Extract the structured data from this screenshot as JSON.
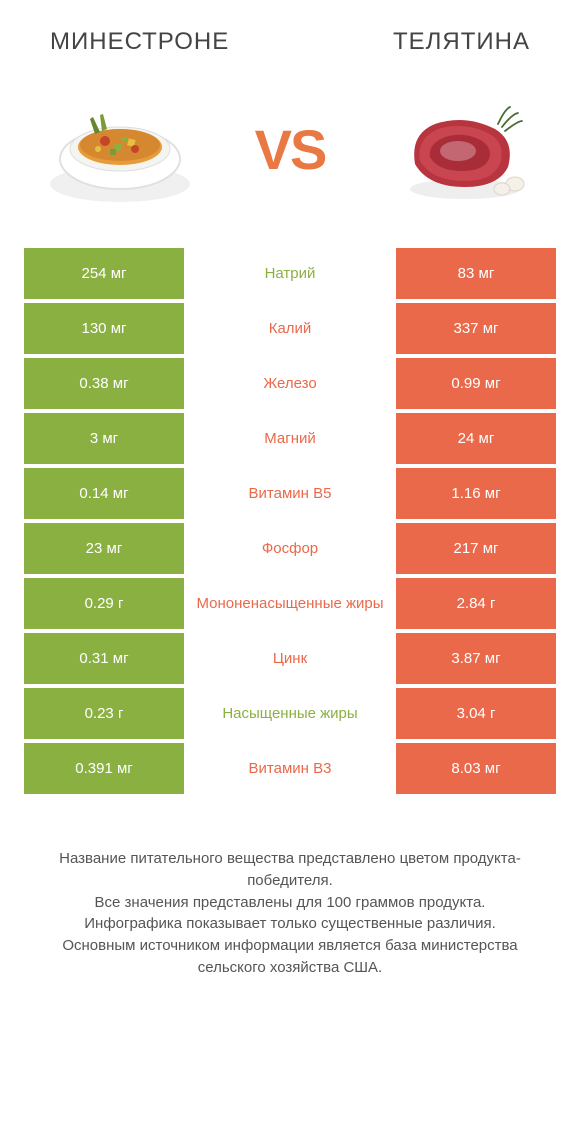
{
  "header": {
    "left_title": "МИНЕСТРОНЕ",
    "right_title": "ТЕЛЯТИНА"
  },
  "hero": {
    "vs_label": "VS",
    "left_alt": "minestrone-soup",
    "right_alt": "veal-meat"
  },
  "colors": {
    "green": "#8bb042",
    "orange": "#e9694a",
    "vs_color": "#e97843",
    "text_dark": "#444444",
    "footer_text": "#555555",
    "background": "#ffffff"
  },
  "rows": [
    {
      "left": "254 мг",
      "mid": "Натрий",
      "right": "83 мг",
      "winner": "left"
    },
    {
      "left": "130 мг",
      "mid": "Калий",
      "right": "337 мг",
      "winner": "right"
    },
    {
      "left": "0.38 мг",
      "mid": "Железо",
      "right": "0.99 мг",
      "winner": "right"
    },
    {
      "left": "3 мг",
      "mid": "Магний",
      "right": "24 мг",
      "winner": "right"
    },
    {
      "left": "0.14 мг",
      "mid": "Витамин B5",
      "right": "1.16 мг",
      "winner": "right"
    },
    {
      "left": "23 мг",
      "mid": "Фосфор",
      "right": "217 мг",
      "winner": "right"
    },
    {
      "left": "0.29 г",
      "mid": "Мононенасыщенные жиры",
      "right": "2.84 г",
      "winner": "right"
    },
    {
      "left": "0.31 мг",
      "mid": "Цинк",
      "right": "3.87 мг",
      "winner": "right"
    },
    {
      "left": "0.23 г",
      "mid": "Насыщенные жиры",
      "right": "3.04 г",
      "winner": "left"
    },
    {
      "left": "0.391 мг",
      "mid": "Витамин B3",
      "right": "8.03 мг",
      "winner": "right"
    }
  ],
  "footer_text": "Название питательного вещества представлено цветом продукта-победителя.\nВсе значения представлены для 100 граммов продукта.\nИнфографика показывает только существенные различия.\nОсновным источником информации является база министерства сельского хозяйства США."
}
